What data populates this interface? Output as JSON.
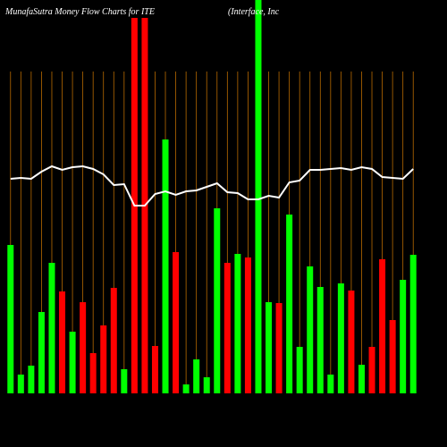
{
  "chart_data": {
    "type": "bar",
    "title": "MunafaSutra  Money Flow  Charts for ITE",
    "subtitle": "(Interface, Inc",
    "values": [
      166,
      21,
      31,
      91,
      146,
      114,
      69,
      102,
      45,
      76,
      118,
      27,
      420,
      420,
      53,
      284,
      158,
      10,
      38,
      18,
      207,
      146,
      156,
      152,
      440,
      102,
      101,
      200,
      52,
      142,
      119,
      21,
      123,
      115,
      32,
      52,
      150,
      82,
      127,
      155
    ],
    "colors": [
      "#00ff00",
      "#00ff00",
      "#00ff00",
      "#00ff00",
      "#00ff00",
      "#ff0000",
      "#00ff00",
      "#ff0000",
      "#ff0000",
      "#ff0000",
      "#ff0000",
      "#00ff00",
      "#ff0000",
      "#ff0000",
      "#ff0000",
      "#00ff00",
      "#ff0000",
      "#00ff00",
      "#00ff00",
      "#00ff00",
      "#00ff00",
      "#ff0000",
      "#00ff00",
      "#ff0000",
      "#00ff00",
      "#00ff00",
      "#ff0000",
      "#00ff00",
      "#00ff00",
      "#00ff00",
      "#00ff00",
      "#00ff00",
      "#00ff00",
      "#ff0000",
      "#00ff00",
      "#ff0000",
      "#ff0000",
      "#ff0000",
      "#00ff00",
      "#00ff00"
    ],
    "line": {
      "color": "#ffffff",
      "values": [
        240,
        241,
        240,
        248,
        254,
        250,
        253,
        254,
        251,
        245,
        233,
        234,
        210,
        210,
        223,
        226,
        222,
        226,
        227,
        231,
        235,
        225,
        224,
        217,
        217,
        221,
        219,
        236,
        238,
        250,
        250,
        251,
        252,
        250,
        253,
        251,
        242,
        241,
        240,
        251
      ]
    },
    "ylim": [
      0,
      440
    ]
  }
}
